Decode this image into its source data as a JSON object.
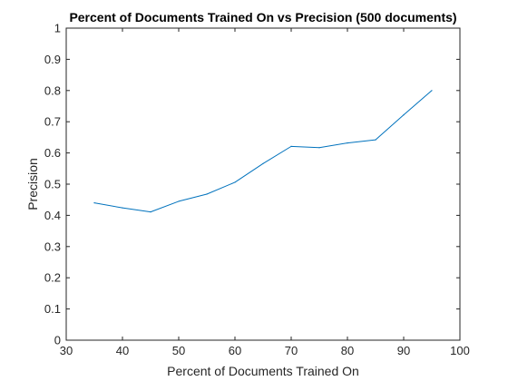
{
  "chart_data": {
    "type": "line",
    "title": "Percent of Documents Trained On vs Precision (500 documents)",
    "xlabel": "Percent of Documents Trained On",
    "ylabel": "Precision",
    "xlim": [
      30,
      100
    ],
    "ylim": [
      0,
      1
    ],
    "xticks": [
      30,
      40,
      50,
      60,
      70,
      80,
      90,
      100
    ],
    "yticks": [
      0,
      0.1,
      0.2,
      0.3,
      0.4,
      0.5,
      0.6,
      0.7,
      0.8,
      0.9,
      1
    ],
    "grid": false,
    "series": [
      {
        "color": "#0072BD",
        "x": [
          35,
          40,
          45,
          50,
          55,
          60,
          65,
          70,
          75,
          80,
          85,
          90,
          95
        ],
        "y": [
          0.44,
          0.424,
          0.411,
          0.445,
          0.468,
          0.506,
          0.566,
          0.621,
          0.617,
          0.632,
          0.642,
          0.722,
          0.8
        ]
      }
    ]
  }
}
